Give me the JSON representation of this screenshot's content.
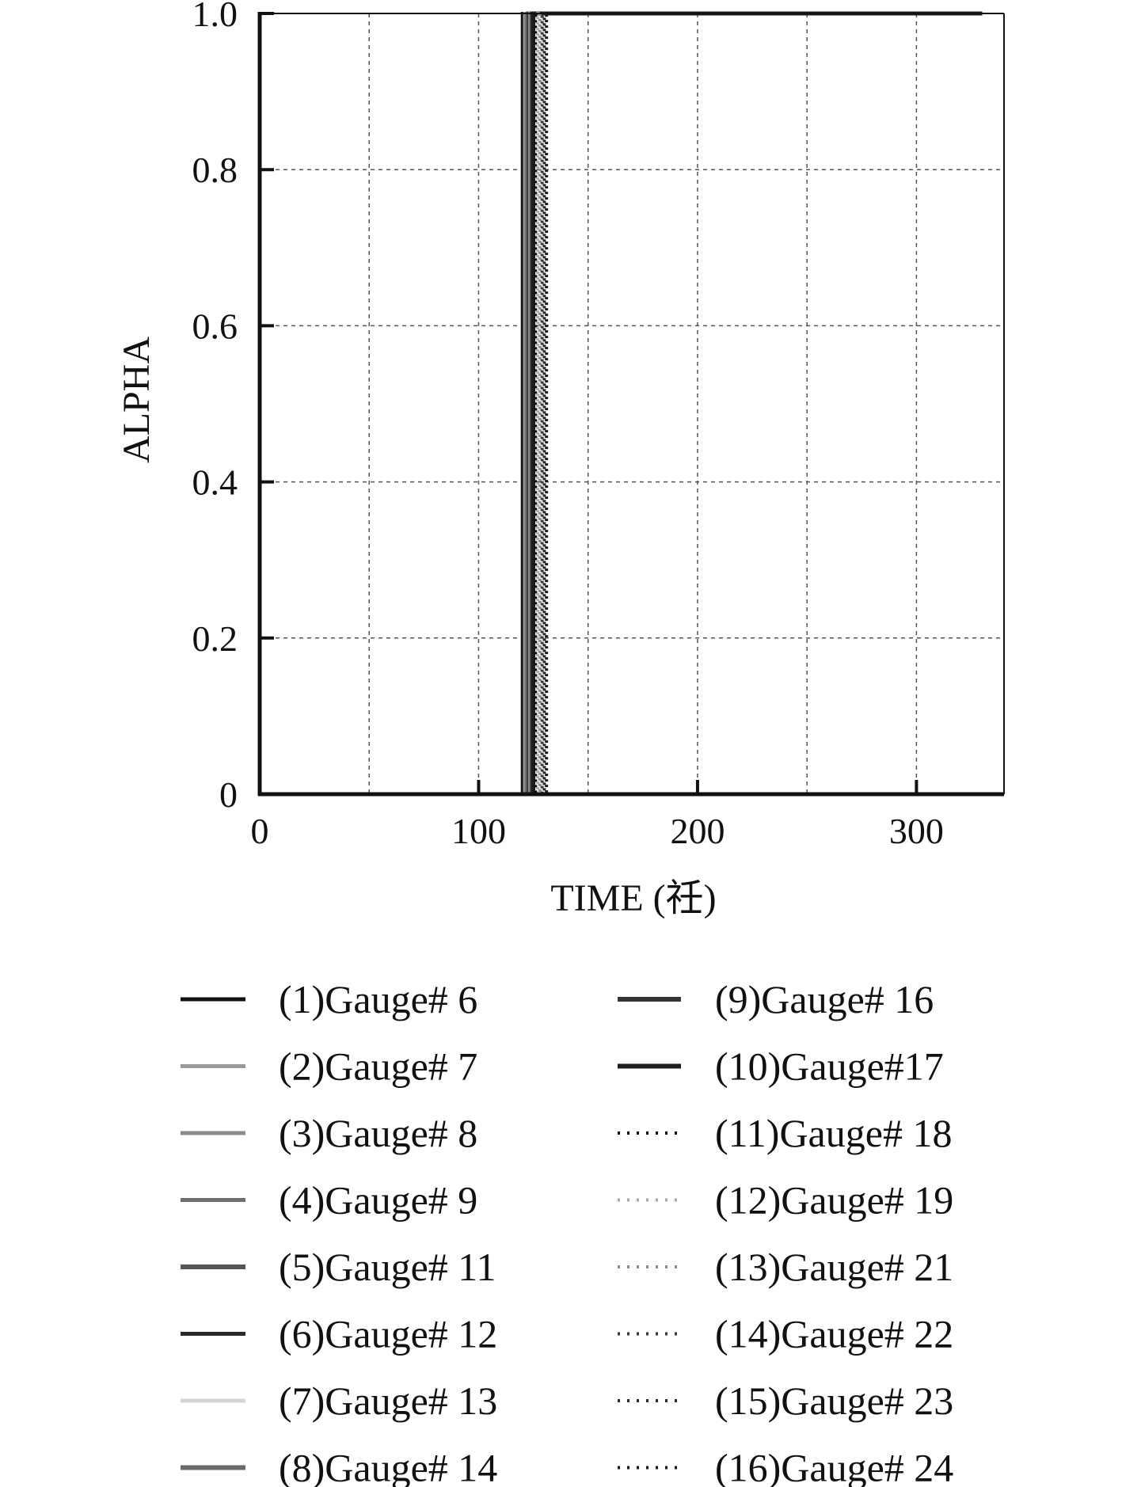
{
  "chart_data": {
    "type": "line",
    "title": "",
    "xlabel": "TIME (祍)",
    "ylabel": "ALPHA",
    "xlim": [
      0,
      340
    ],
    "ylim": [
      0,
      1.0
    ],
    "xticks": [
      0,
      100,
      200,
      300
    ],
    "xtick_labels": [
      "0",
      "100",
      "200",
      "300"
    ],
    "yticks": [
      0,
      0.2,
      0.4,
      0.6,
      0.8,
      1.0
    ],
    "ytick_labels": [
      "0",
      "0.2",
      "0.4",
      "0.6",
      "0.8",
      "1.0"
    ],
    "grid": true,
    "grid_x": [
      50,
      100,
      150,
      200,
      250,
      300
    ],
    "legend_placement": "below",
    "series": [
      {
        "name": "(1)Gauge# 6",
        "color": "#111111",
        "dash": "solid",
        "width": 4,
        "x": [
          0,
          120,
          120,
          330
        ],
        "values": [
          0,
          0,
          1,
          1
        ]
      },
      {
        "name": "(2)Gauge# 7",
        "color": "#9a9a9a",
        "dash": "solid",
        "width": 4,
        "x": [
          0,
          121,
          121,
          330
        ],
        "values": [
          0,
          0,
          1,
          1
        ]
      },
      {
        "name": "(3)Gauge# 8",
        "color": "#8a8a8a",
        "dash": "solid",
        "width": 4,
        "x": [
          0,
          121.5,
          121.5,
          330
        ],
        "values": [
          0,
          0,
          1,
          1
        ]
      },
      {
        "name": "(4)Gauge# 9",
        "color": "#6e6e6e",
        "dash": "solid",
        "width": 4,
        "x": [
          0,
          122,
          122,
          330
        ],
        "values": [
          0,
          0,
          1,
          1
        ]
      },
      {
        "name": "(5)Gauge# 11",
        "color": "#555555",
        "dash": "solid",
        "width": 5,
        "x": [
          0,
          122.5,
          122.5,
          330
        ],
        "values": [
          0,
          0,
          1,
          1
        ]
      },
      {
        "name": "(6)Gauge# 12",
        "color": "#2a2a2a",
        "dash": "solid",
        "width": 4,
        "x": [
          0,
          123,
          123,
          330
        ],
        "values": [
          0,
          0,
          1,
          1
        ]
      },
      {
        "name": "(7)Gauge# 13",
        "color": "#d4d4d4",
        "dash": "solid",
        "width": 4,
        "x": [
          0,
          123.5,
          123.5,
          330
        ],
        "values": [
          0,
          0,
          1,
          1
        ]
      },
      {
        "name": "(8)Gauge# 14",
        "color": "#6a6a6a",
        "dash": "solid",
        "width": 5,
        "x": [
          0,
          124,
          124,
          330
        ],
        "values": [
          0,
          0,
          1,
          1
        ]
      },
      {
        "name": "(9)Gauge# 16",
        "color": "#333333",
        "dash": "solid",
        "width": 5,
        "x": [
          0,
          124.5,
          124.5,
          330
        ],
        "values": [
          0,
          0,
          1,
          1
        ]
      },
      {
        "name": "(10)Gauge#17",
        "color": "#1e1e1e",
        "dash": "solid",
        "width": 5,
        "x": [
          0,
          125,
          125,
          330
        ],
        "values": [
          0,
          0,
          1,
          1
        ]
      },
      {
        "name": "(11)Gauge# 18",
        "color": "#111111",
        "dash": "dotted",
        "width": 4,
        "x": [
          0,
          126,
          126,
          330
        ],
        "values": [
          0,
          0,
          1,
          1
        ]
      },
      {
        "name": "(12)Gauge# 19",
        "color": "#aaaaaa",
        "dash": "dotted",
        "width": 4,
        "x": [
          0,
          127,
          127,
          330
        ],
        "values": [
          0,
          0,
          1,
          1
        ]
      },
      {
        "name": "(13)Gauge# 21",
        "color": "#8c8c8c",
        "dash": "dotted",
        "width": 4,
        "x": [
          0,
          128,
          128,
          330
        ],
        "values": [
          0,
          0,
          1,
          1
        ]
      },
      {
        "name": "(14)Gauge# 22",
        "color": "#3a3a3a",
        "dash": "dotted",
        "width": 4,
        "x": [
          0,
          129,
          129,
          330
        ],
        "values": [
          0,
          0,
          1,
          1
        ]
      },
      {
        "name": "(15)Gauge# 23",
        "color": "#2a2a2a",
        "dash": "dotted",
        "width": 4,
        "x": [
          0,
          130,
          130,
          330
        ],
        "values": [
          0,
          0,
          1,
          1
        ]
      },
      {
        "name": "(16)Gauge# 24",
        "color": "#1a1a1a",
        "dash": "dotted",
        "width": 4,
        "x": [
          0,
          131,
          131,
          330
        ],
        "values": [
          0,
          0,
          1,
          1
        ]
      }
    ]
  }
}
